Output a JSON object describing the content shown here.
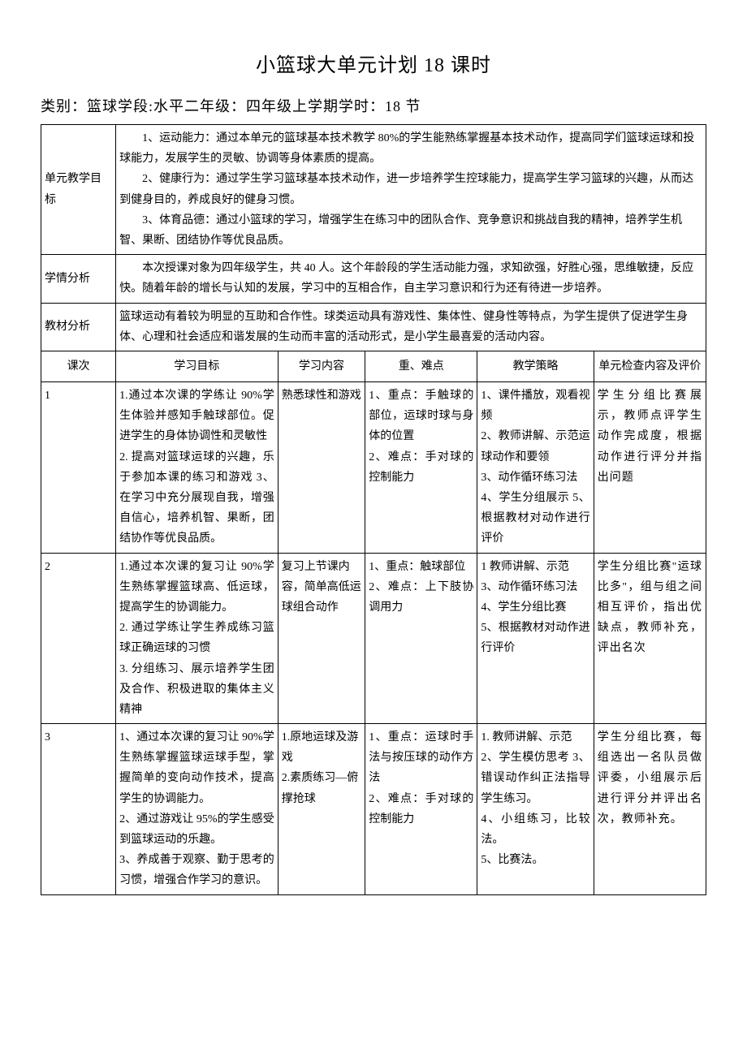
{
  "title": "小篮球大单元计划 18 课时",
  "subtitle": "类别：篮球学段:水平二年级：四年级上学期学时：18 节",
  "meta_rows": {
    "goal_label": "单元教学目标",
    "goal_p1": "1、运动能力：通过本单元的篮球基本技术教学 80%的学生能熟练掌握基本技术动作，提高同学们篮球运球和投球能力，发展学生的灵敏、协调等身体素质的提高。",
    "goal_p2": "2、健康行为：通过学生学习篮球基本技术动作，进一步培养学生控球能力，提高学生学习篮球的兴趣，从而达到健身目的，养成良好的健身习惯。",
    "goal_p3": "3、体育品德：通过小篮球的学习，增强学生在练习中的团队合作、竞争意识和挑战自我的精神，培养学生机智、果断、团结协作等优良品质。",
    "situation_label": "学情分析",
    "situation_text": "本次授课对象为四年级学生，共 40 人。这个年龄段的学生活动能力强，求知欲强，好胜心强，思维敏捷，反应快。随着年龄的增长与认知的发展，学习中的互相合作，自主学习意识和行为还有待进一步培养。",
    "material_label": "教材分析",
    "material_text": "篮球运动有着较为明显的互助和合作性。球类运动具有游戏性、集体性、健身性等特点，为学生提供了促进学生身体、心理和社会适应和谐发展的生动而丰富的活动形式，是小学生最喜爱的活动内容。"
  },
  "headers": {
    "lesson_no": "课次",
    "objective": "学习目标",
    "content": "学习内容",
    "keypoints": "重、难点",
    "strategy": "教学策略",
    "evaluation": "单元检查内容及评价"
  },
  "lessons": [
    {
      "no": "1",
      "objective": "1.通过本次课的学练让 90%学生体验并感知手触球部位。促进学生的身体协调性和灵敏性\n2. 提高对篮球运球的兴趣，乐于参加本课的练习和游戏 3、在学习中充分展现自我，增强自信心，培养机智、果断，团结协作等优良品质。",
      "content": "熟悉球性和游戏",
      "keypoints": "1、重点：手触球的部位，运球时球与身体的位置\n2、难点：手对球的控制能力",
      "strategy": "1、课件播放，观看视频\n2、教师讲解、示范运球动作和要领\n3、动作循环练习法\n4、学生分组展示 5、根据教材对动作进行评价",
      "evaluation": "学生分组比赛展示，教师点评学生动作完成度，根据动作进行评分并指出问题"
    },
    {
      "no": "2",
      "objective": "1.通过本次课的复习让 90%学生熟练掌握篮球高、低运球，提高学生的协调能力。\n2. 通过学练让学生养成练习篮球正确运球的习惯\n3. 分组练习、展示培养学生团及合作、积极进取的集体主义精神",
      "content": "复习上节课内容，简单高低运球组合动作",
      "keypoints": "1、重点：触球部位\n2、难点：上下肢协调用力",
      "strategy": "1 教师讲解、示范\n3、动作循环练习法\n4、学生分组比赛\n5、根据教材对动作进行评价",
      "evaluation": "学生分组比赛\"运球比多\"，组与组之间相互评价，指出优缺点，教师补充，评出名次"
    },
    {
      "no": "3",
      "objective": "1、通过本次课的复习让 90%学生熟练掌握篮球运球手型，掌握简单的变向动作技术，提高学生的协调能力。\n2、通过游戏让 95%的学生感受到篮球运动的乐趣。\n3、养成善于观察、勤于思考的习惯，增强合作学习的意识。",
      "content": "1.原地运球及游戏\n2.素质练习—俯撑抢球",
      "keypoints": "1、重点：运球时手法与按压球的动作方法\n2、难点：手对球的控制能力",
      "strategy": "1. 教师讲解、示范\n2、学生模仿思考 3、错误动作纠正法指导学生练习。\n4、小组练习，比较法。\n5、比赛法。",
      "evaluation": "学生分组比赛，每组选出一名队员做评委，小组展示后进行评分并评出名次，教师补充。"
    }
  ],
  "col_widths": [
    "90",
    "195",
    "105",
    "135",
    "140",
    "135"
  ]
}
